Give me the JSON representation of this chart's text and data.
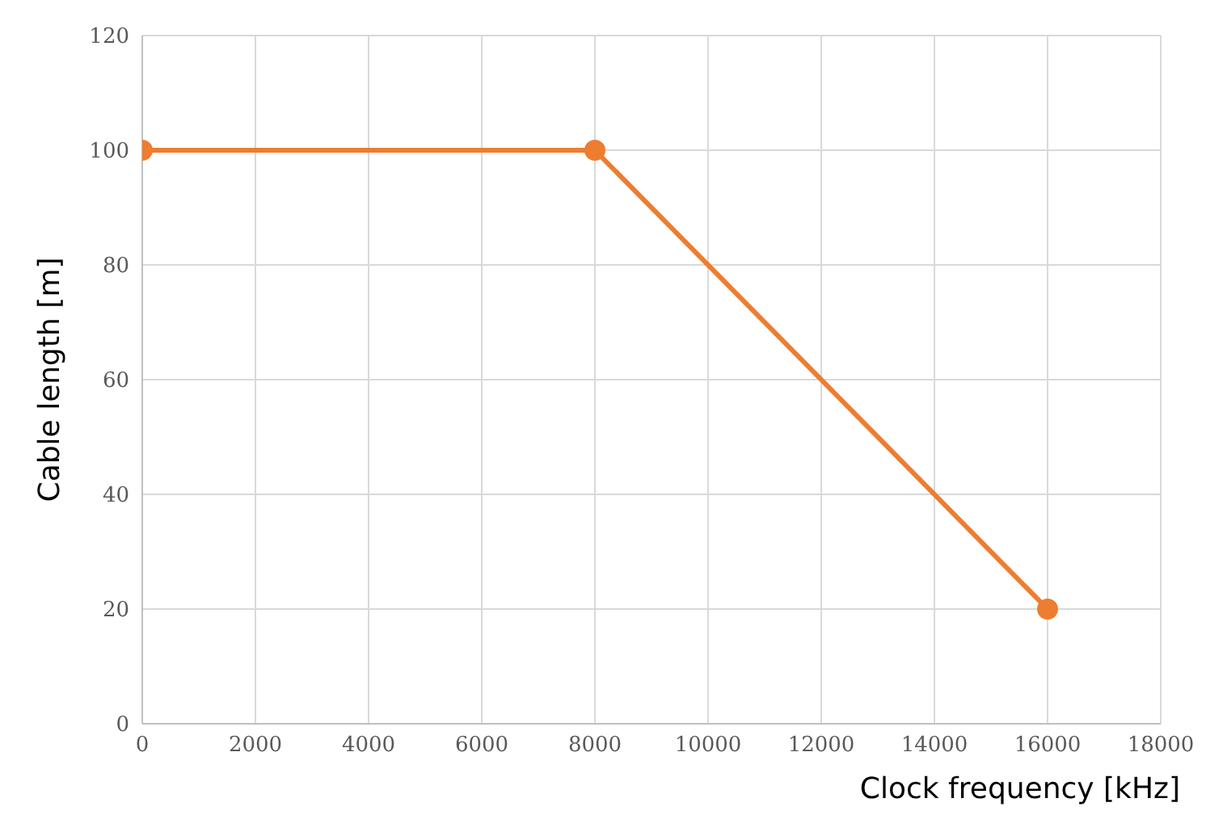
{
  "chart_data": {
    "type": "line",
    "xlabel": "Clock frequency [kHz]",
    "ylabel": "Cable length [m]",
    "x": [
      0,
      8000,
      16000
    ],
    "series": [
      {
        "color": "#ed7d31",
        "values": [
          100,
          100,
          20
        ]
      }
    ],
    "xlim": [
      0,
      18000
    ],
    "xticks": [
      0,
      2000,
      4000,
      6000,
      8000,
      10000,
      12000,
      14000,
      16000,
      18000
    ],
    "ylim": [
      0,
      120
    ],
    "yticks": [
      0,
      20,
      40,
      60,
      80,
      100,
      120
    ],
    "grid": true,
    "marker": "circle",
    "line_style": "solid"
  }
}
